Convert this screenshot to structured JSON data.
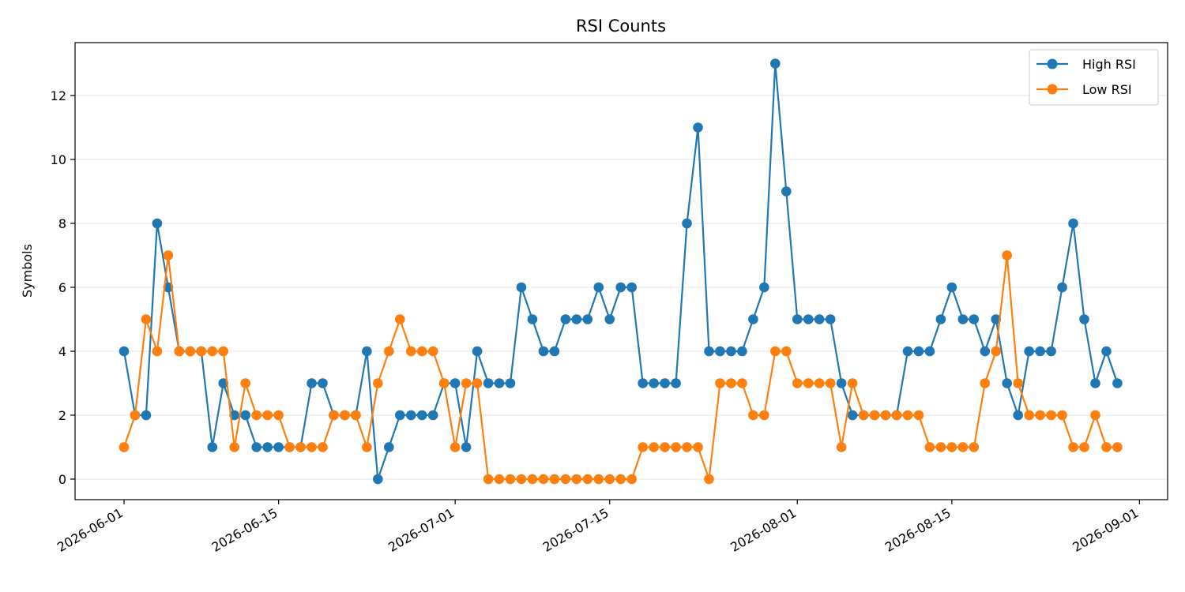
{
  "chart_data": {
    "type": "line",
    "title": "RSI Counts",
    "xlabel": "",
    "ylabel": "Symbols",
    "x_start": "2026-06-01",
    "x_end": "2026-08-30",
    "xlim": [
      "2025-05-27",
      "2026-09-03"
    ],
    "ylim": [
      -0.65,
      13.65
    ],
    "x_ticks": [
      "2026-06-01",
      "2026-06-15",
      "2026-07-01",
      "2026-07-15",
      "2026-08-01",
      "2026-08-15",
      "2026-09-01"
    ],
    "y_ticks": [
      0,
      2,
      4,
      6,
      8,
      10,
      12
    ],
    "grid": "horizontal",
    "legend_position": "top-right",
    "series": [
      {
        "name": "High RSI",
        "color": "#1f77b4",
        "values": [
          4,
          2,
          2,
          8,
          6,
          4,
          4,
          4,
          1,
          3,
          2,
          2,
          1,
          1,
          1,
          1,
          1,
          3,
          3,
          2,
          2,
          2,
          4,
          0,
          1,
          2,
          2,
          2,
          2,
          3,
          3,
          1,
          4,
          3,
          3,
          3,
          6,
          5,
          4,
          4,
          5,
          5,
          5,
          6,
          5,
          6,
          6,
          3,
          3,
          3,
          3,
          8,
          11,
          4,
          4,
          4,
          4,
          5,
          6,
          13,
          9,
          5,
          5,
          5,
          5,
          3,
          2,
          2,
          2,
          2,
          2,
          4,
          4,
          4,
          5,
          6,
          5,
          5,
          4,
          5,
          3,
          2,
          4,
          4,
          4,
          6,
          8,
          5,
          3,
          4,
          3
        ]
      },
      {
        "name": "Low RSI",
        "color": "#ff7f0e",
        "values": [
          1,
          2,
          5,
          4,
          7,
          4,
          4,
          4,
          4,
          4,
          1,
          3,
          2,
          2,
          2,
          1,
          1,
          1,
          1,
          2,
          2,
          2,
          1,
          3,
          4,
          5,
          4,
          4,
          4,
          3,
          1,
          3,
          3,
          0,
          0,
          0,
          0,
          0,
          0,
          0,
          0,
          0,
          0,
          0,
          0,
          0,
          0,
          1,
          1,
          1,
          1,
          1,
          1,
          0,
          3,
          3,
          3,
          2,
          2,
          4,
          4,
          3,
          3,
          3,
          3,
          1,
          3,
          2,
          2,
          2,
          2,
          2,
          2,
          1,
          1,
          1,
          1,
          1,
          3,
          4,
          7,
          3,
          2,
          2,
          2,
          2,
          1,
          1,
          2,
          1,
          1
        ]
      }
    ]
  }
}
